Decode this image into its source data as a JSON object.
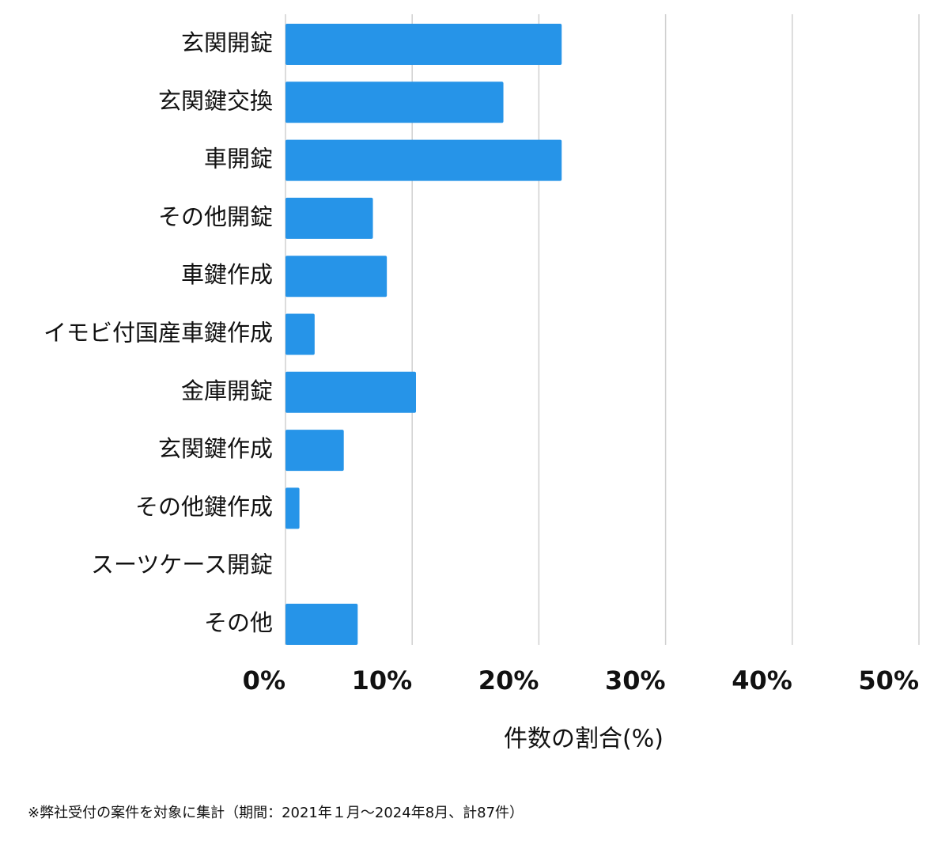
{
  "chart_data": {
    "type": "bar",
    "orientation": "horizontal",
    "categories": [
      "玄関開錠",
      "玄関鍵交換",
      "車開錠",
      "その他開錠",
      "車鍵作成",
      "イモビ付国産車鍵作成",
      "金庫開錠",
      "玄関鍵作成",
      "その他鍵作成",
      "スーツケース開錠",
      "その他"
    ],
    "values": [
      21.8,
      17.2,
      21.8,
      6.9,
      8.0,
      2.3,
      10.3,
      4.6,
      1.1,
      0,
      5.7
    ],
    "color": "#2694e8",
    "xlim": [
      0,
      50
    ],
    "xticks": [
      {
        "value": 0,
        "label": "0%"
      },
      {
        "value": 10,
        "label": "10%"
      },
      {
        "value": 20,
        "label": "20%"
      },
      {
        "value": 30,
        "label": "30%"
      },
      {
        "value": 40,
        "label": "40%"
      },
      {
        "value": 50,
        "label": "50%"
      }
    ],
    "xlabel": "件数の割合(%)",
    "grid": true,
    "note": "※弊社受付の案件を対象に集計（期間：2021年１月〜2024年8月、計87件）"
  }
}
